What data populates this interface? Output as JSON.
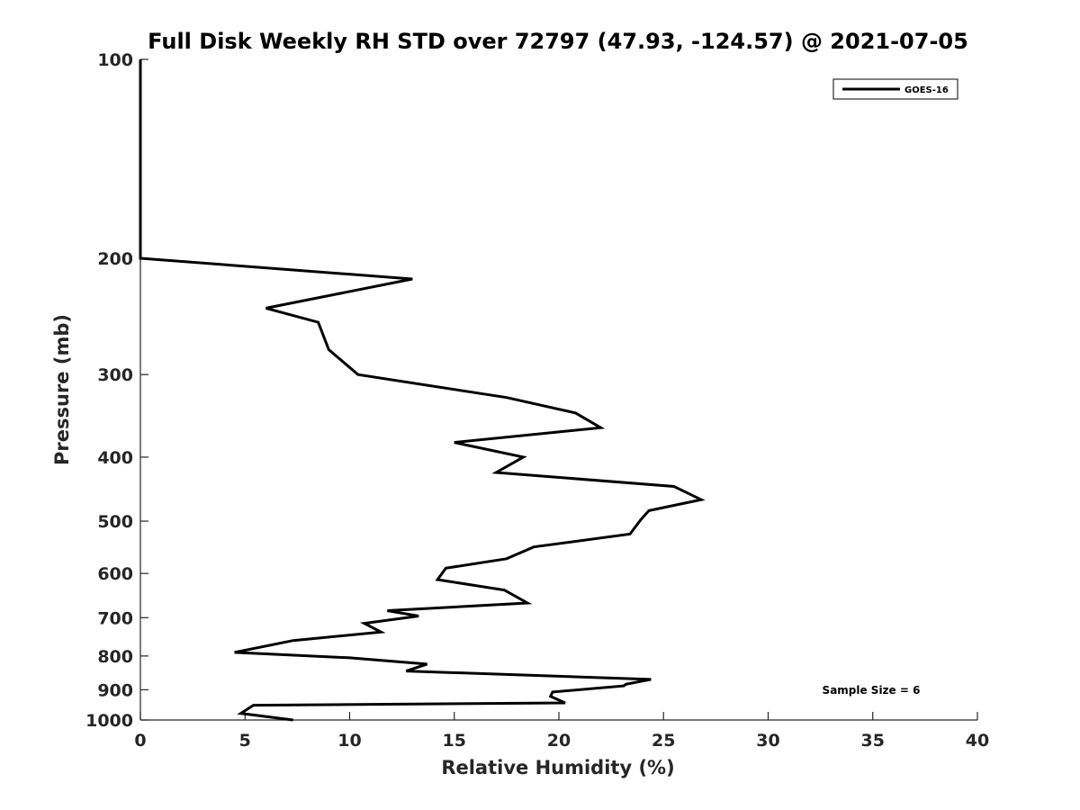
{
  "chart_data": {
    "type": "line",
    "title": "Full Disk Weekly RH STD over 72797 (47.93, -124.57) @ 2021-07-05",
    "xlabel": "Relative Humidity (%)",
    "ylabel": "Pressure (mb)",
    "xlim": [
      0,
      40
    ],
    "ylim": [
      100,
      1000
    ],
    "y_scale": "log",
    "y_reversed": true,
    "x_ticks": [
      0,
      5,
      10,
      15,
      20,
      25,
      30,
      35,
      40
    ],
    "y_ticks": [
      100,
      200,
      300,
      400,
      500,
      600,
      700,
      800,
      900,
      1000
    ],
    "grid": false,
    "legend_position": "top-right",
    "annotation": "Sample Size = 6",
    "series": [
      {
        "name": "GOES-16",
        "color": "#000000",
        "points": [
          [
            0,
            100
          ],
          [
            0,
            120
          ],
          [
            0,
            150
          ],
          [
            0,
            180
          ],
          [
            0,
            200
          ],
          [
            13.0,
            215
          ],
          [
            6.0,
            238
          ],
          [
            8.5,
            250
          ],
          [
            9.0,
            275
          ],
          [
            10.4,
            300
          ],
          [
            17.5,
            325
          ],
          [
            20.8,
            343
          ],
          [
            22.0,
            361
          ],
          [
            15.0,
            380
          ],
          [
            18.3,
            400
          ],
          [
            17.0,
            422
          ],
          [
            25.5,
            443
          ],
          [
            26.8,
            464
          ],
          [
            24.3,
            482
          ],
          [
            23.9,
            498
          ],
          [
            23.4,
            523
          ],
          [
            18.8,
            547
          ],
          [
            17.5,
            570
          ],
          [
            14.6,
            589
          ],
          [
            14.2,
            613
          ],
          [
            17.4,
            636
          ],
          [
            18.5,
            665
          ],
          [
            11.8,
            683
          ],
          [
            13.3,
            696
          ],
          [
            10.7,
            714
          ],
          [
            11.5,
            736
          ],
          [
            7.3,
            758
          ],
          [
            4.5,
            790
          ],
          [
            10.0,
            805
          ],
          [
            13.7,
            823
          ],
          [
            12.7,
            843
          ],
          [
            24.4,
            868
          ],
          [
            23.2,
            883
          ],
          [
            23.1,
            888
          ],
          [
            19.7,
            907
          ],
          [
            19.6,
            921
          ],
          [
            20.3,
            942
          ],
          [
            5.4,
            950
          ],
          [
            4.8,
            977
          ],
          [
            7.3,
            1000
          ]
        ]
      }
    ]
  }
}
